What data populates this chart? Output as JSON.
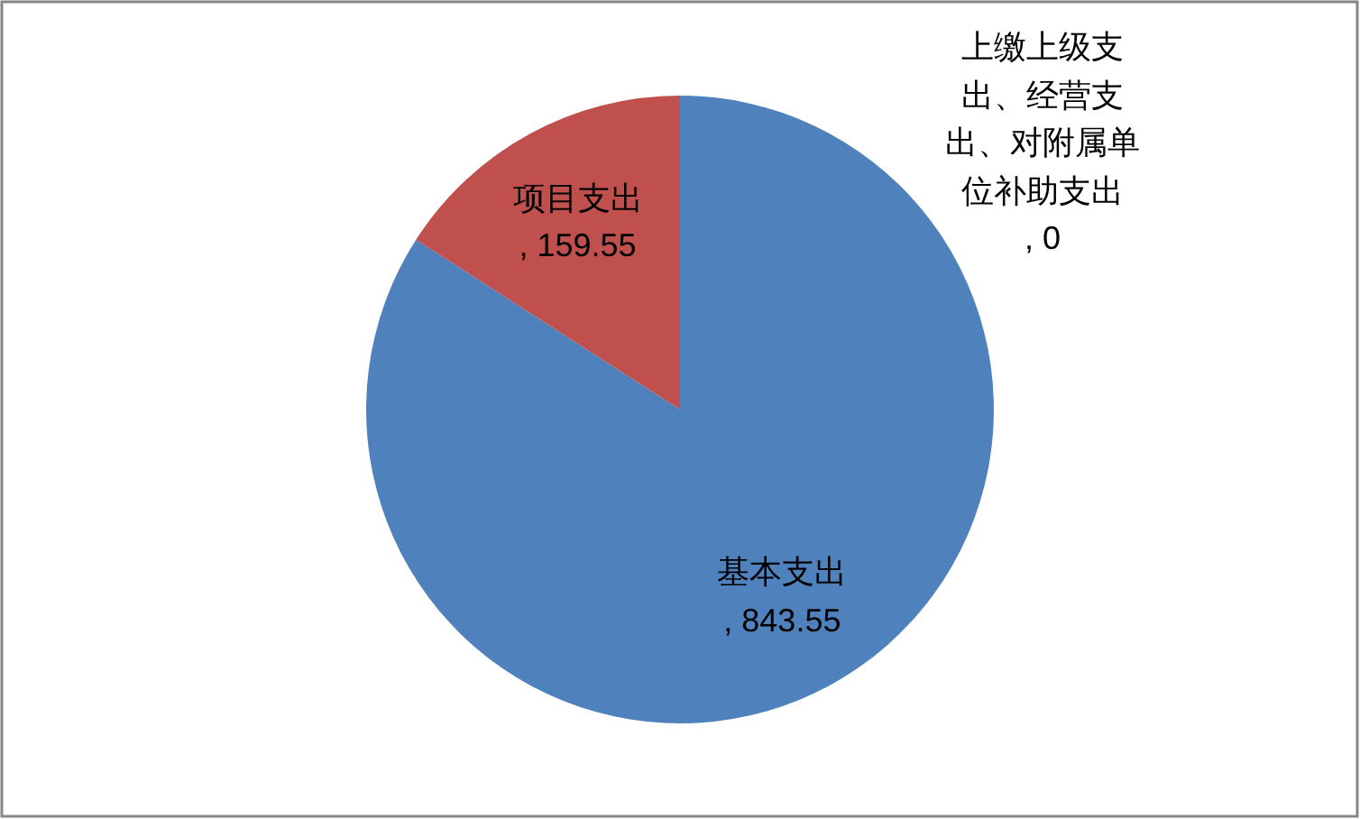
{
  "chart_data": {
    "type": "pie",
    "categories": [
      "基本支出",
      "项目支出",
      "上缴上级支出、经营支出、对附属单位补助支出"
    ],
    "values": [
      843.55,
      159.55,
      0
    ],
    "colors": [
      "#4f81bd",
      "#c0504d",
      null
    ],
    "value_labels": [
      ", 843.55",
      ", 159.55",
      ", 0"
    ]
  }
}
